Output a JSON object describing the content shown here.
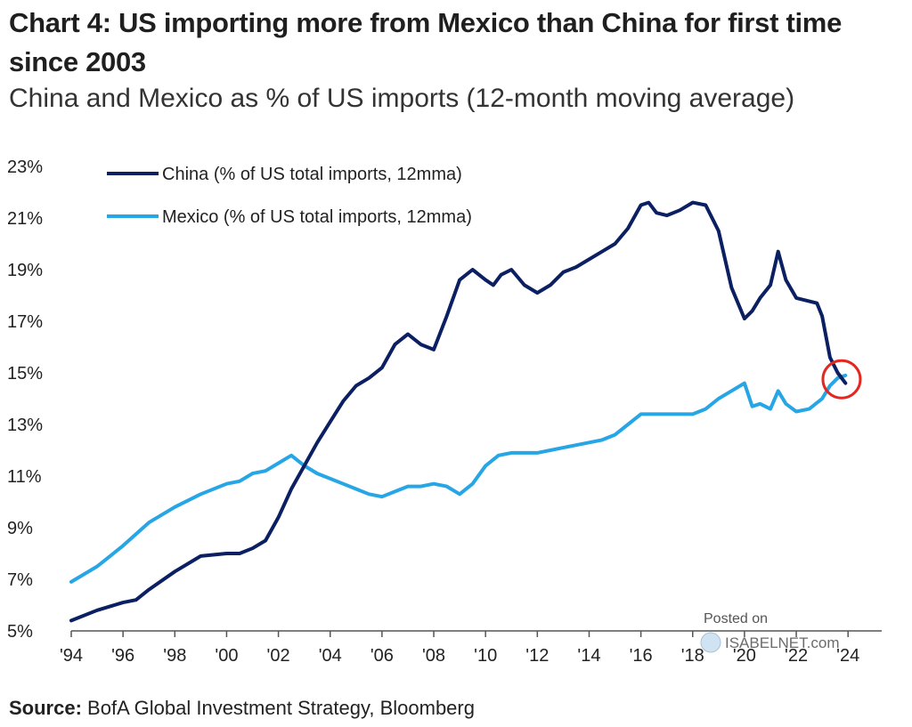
{
  "header": {
    "title": "Chart 4: US importing more from Mexico than China for first time since 2003",
    "subtitle": "China and Mexico as % of US imports (12-month moving average)"
  },
  "footer": {
    "source_label": "Source:",
    "source_text": "BofA Global Investment Strategy, Bloomberg"
  },
  "watermark": {
    "line1": "Posted on",
    "line2": "ISABELNET.com"
  },
  "colors": {
    "china": "#0b1f63",
    "mexico": "#27a6e5",
    "highlight": "#e32822",
    "axis": "#555555"
  },
  "chart_data": {
    "type": "line",
    "title": "China and Mexico as % of US imports (12-month moving average)",
    "xlabel": "",
    "ylabel": "",
    "xlim": [
      1994,
      2025.3
    ],
    "ylim": [
      5,
      23
    ],
    "x_ticks": [
      1994,
      1996,
      1998,
      2000,
      2002,
      2004,
      2006,
      2008,
      2010,
      2012,
      2014,
      2016,
      2018,
      2020,
      2022,
      2024
    ],
    "x_tick_labels": [
      "'94",
      "'96",
      "'98",
      "'00",
      "'02",
      "'04",
      "'06",
      "'08",
      "'10",
      "'12",
      "'14",
      "'16",
      "'18",
      "'20",
      "'22",
      "'24"
    ],
    "y_ticks": [
      5,
      7,
      9,
      11,
      13,
      15,
      17,
      19,
      21,
      23
    ],
    "y_tick_labels": [
      "5%",
      "7%",
      "9%",
      "11%",
      "13%",
      "15%",
      "17%",
      "19%",
      "21%",
      "23%"
    ],
    "grid": false,
    "legend_position": "top-left",
    "annotation": "red circle marking the 2023 crossover",
    "series": [
      {
        "name": "China (% of US total imports, 12mma)",
        "x": [
          1994.0,
          1995.0,
          1996.0,
          1996.5,
          1997.0,
          1998.0,
          1999.0,
          2000.0,
          2000.5,
          2001.0,
          2001.5,
          2002.0,
          2002.5,
          2003.0,
          2003.5,
          2004.0,
          2004.5,
          2005.0,
          2005.5,
          2006.0,
          2006.5,
          2007.0,
          2007.5,
          2008.0,
          2008.5,
          2009.0,
          2009.5,
          2010.0,
          2010.3,
          2010.6,
          2011.0,
          2011.5,
          2012.0,
          2012.5,
          2013.0,
          2013.5,
          2014.0,
          2014.5,
          2015.0,
          2015.5,
          2016.0,
          2016.3,
          2016.6,
          2017.0,
          2017.5,
          2018.0,
          2018.5,
          2019.0,
          2019.5,
          2020.0,
          2020.3,
          2020.6,
          2021.0,
          2021.3,
          2021.6,
          2022.0,
          2022.4,
          2022.8,
          2023.0,
          2023.3,
          2023.6,
          2023.9
        ],
        "values": [
          5.4,
          5.8,
          6.1,
          6.2,
          6.6,
          7.3,
          7.9,
          8.0,
          8.0,
          8.2,
          8.5,
          9.4,
          10.5,
          11.4,
          12.3,
          13.1,
          13.9,
          14.5,
          14.8,
          15.2,
          16.1,
          16.5,
          16.1,
          15.9,
          17.2,
          18.6,
          19.0,
          18.6,
          18.4,
          18.8,
          19.0,
          18.4,
          18.1,
          18.4,
          18.9,
          19.1,
          19.4,
          19.7,
          20.0,
          20.6,
          21.5,
          21.6,
          21.2,
          21.1,
          21.3,
          21.6,
          21.5,
          20.5,
          18.3,
          17.1,
          17.4,
          17.9,
          18.4,
          19.7,
          18.6,
          17.9,
          17.8,
          17.7,
          17.2,
          15.6,
          15.0,
          14.6
        ]
      },
      {
        "name": "Mexico (% of US total imports, 12mma)",
        "x": [
          1994.0,
          1995.0,
          1996.0,
          1997.0,
          1998.0,
          1999.0,
          2000.0,
          2000.5,
          2001.0,
          2001.5,
          2002.0,
          2002.5,
          2003.0,
          2003.5,
          2004.0,
          2004.5,
          2005.0,
          2005.5,
          2006.0,
          2006.5,
          2007.0,
          2007.5,
          2008.0,
          2008.5,
          2009.0,
          2009.5,
          2010.0,
          2010.5,
          2011.0,
          2011.5,
          2012.0,
          2012.5,
          2013.0,
          2013.5,
          2014.0,
          2014.5,
          2015.0,
          2015.5,
          2016.0,
          2016.5,
          2017.0,
          2017.5,
          2018.0,
          2018.5,
          2019.0,
          2019.5,
          2020.0,
          2020.3,
          2020.6,
          2021.0,
          2021.3,
          2021.6,
          2022.0,
          2022.5,
          2023.0,
          2023.3,
          2023.6,
          2023.9
        ],
        "values": [
          6.9,
          7.5,
          8.3,
          9.2,
          9.8,
          10.3,
          10.7,
          10.8,
          11.1,
          11.2,
          11.5,
          11.8,
          11.4,
          11.1,
          10.9,
          10.7,
          10.5,
          10.3,
          10.2,
          10.4,
          10.6,
          10.6,
          10.7,
          10.6,
          10.3,
          10.7,
          11.4,
          11.8,
          11.9,
          11.9,
          11.9,
          12.0,
          12.1,
          12.2,
          12.3,
          12.4,
          12.6,
          13.0,
          13.4,
          13.4,
          13.4,
          13.4,
          13.4,
          13.6,
          14.0,
          14.3,
          14.6,
          13.7,
          13.8,
          13.6,
          14.3,
          13.8,
          13.5,
          13.6,
          14.0,
          14.5,
          14.8,
          14.9
        ]
      }
    ]
  }
}
